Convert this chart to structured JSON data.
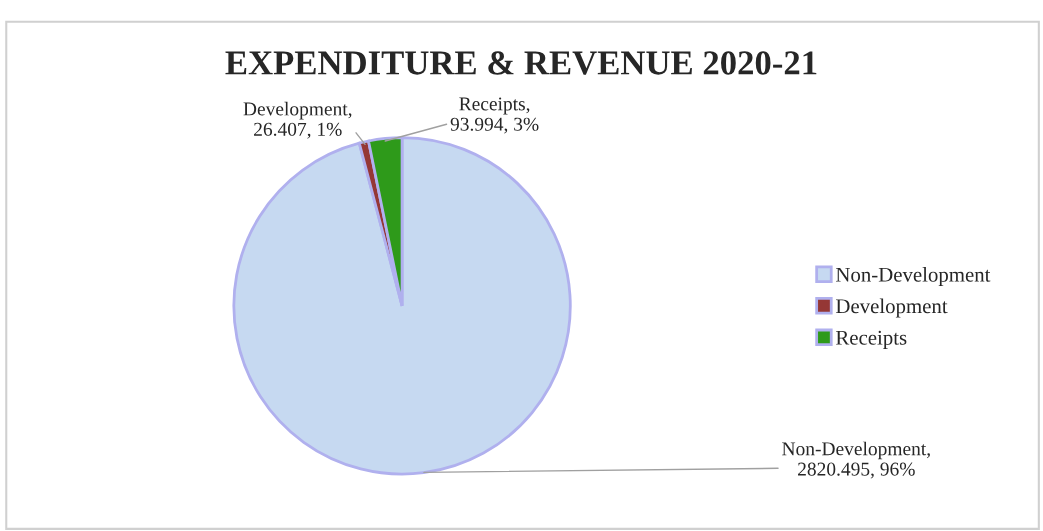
{
  "chart_data": {
    "type": "pie",
    "title": "EXPENDITURE & REVENUE 2020-21",
    "categories": [
      "Non-Development",
      "Development",
      "Receipts"
    ],
    "values": [
      2820.495,
      26.407,
      93.994
    ],
    "colors": [
      "#c6d9f1",
      "#953735",
      "#2e9a1a"
    ],
    "value_labels": [
      "Non-Development,\n2820.495, 96%",
      "Development,\n26.407, 1%",
      "Receipts,\n93.994, 3%"
    ],
    "legend": "right"
  }
}
